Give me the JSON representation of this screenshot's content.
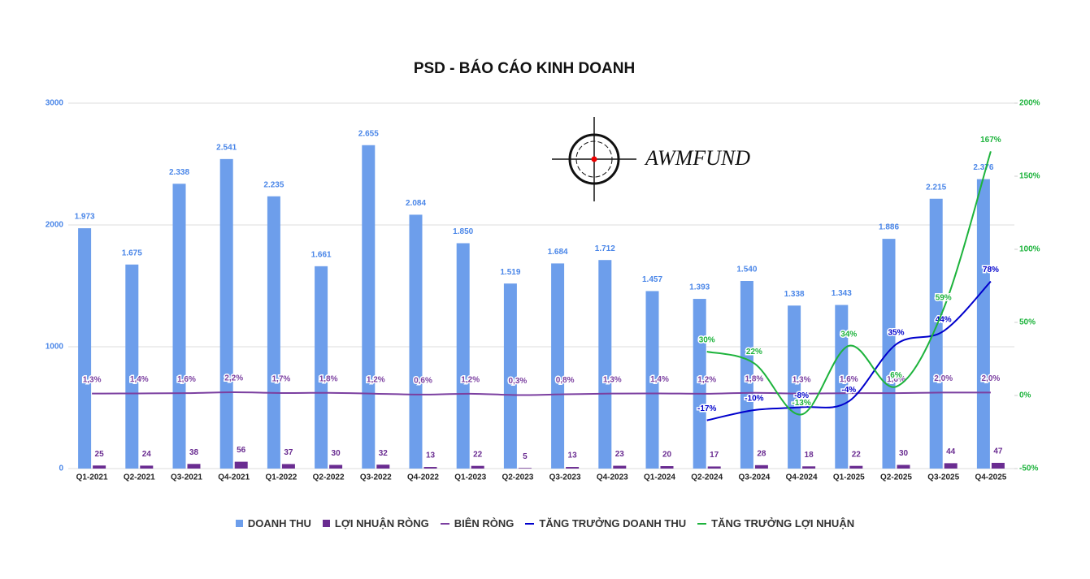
{
  "chart_data": {
    "type": "bar-line",
    "title": "PSD - BÁO CÁO KINH DOANH",
    "watermark": "AWMFUND",
    "categories": [
      "Q1-2021",
      "Q2-2021",
      "Q3-2021",
      "Q4-2021",
      "Q1-2022",
      "Q2-2022",
      "Q3-2022",
      "Q4-2022",
      "Q1-2023",
      "Q2-2023",
      "Q3-2023",
      "Q4-2023",
      "Q1-2024",
      "Q2-2024",
      "Q3-2024",
      "Q4-2024",
      "Q1-2025",
      "Q2-2025",
      "Q3-2025",
      "Q4-2025"
    ],
    "ylim": [
      0,
      3000
    ],
    "yticks": [
      0,
      1000,
      2000,
      3000
    ],
    "y2lim": [
      -50,
      200
    ],
    "y2ticks": [
      {
        "value": -50,
        "label": "-50%"
      },
      {
        "value": 0,
        "label": "0%"
      },
      {
        "value": 50,
        "label": "50%"
      },
      {
        "value": 100,
        "label": "100%"
      },
      {
        "value": 150,
        "label": "150%"
      },
      {
        "value": 200,
        "label": "200%"
      }
    ],
    "grid": true,
    "legend": "bottom",
    "series": [
      {
        "name": "DOANH THU",
        "kind": "bar",
        "color": "#6d9eeb",
        "values": [
          1973,
          1675,
          2338,
          2541,
          2235,
          1661,
          2655,
          2084,
          1850,
          1519,
          1684,
          1712,
          1457,
          1393,
          1540,
          1338,
          1343,
          1886,
          2215,
          2376
        ],
        "value_labels": [
          "1.973",
          "1.675",
          "2.338",
          "2.541",
          "2.235",
          "1.661",
          "2.655",
          "2.084",
          "1.850",
          "1.519",
          "1.684",
          "1.712",
          "1.457",
          "1.393",
          "1.540",
          "1.338",
          "1.343",
          "1.886",
          "2.215",
          "2.376"
        ]
      },
      {
        "name": "LỢI NHUẬN RÒNG",
        "kind": "bar",
        "color": "#6a2c91",
        "values": [
          25,
          24,
          38,
          56,
          37,
          30,
          32,
          13,
          22,
          5,
          13,
          23,
          20,
          17,
          28,
          18,
          22,
          30,
          44,
          47
        ]
      },
      {
        "name": "BIÊN RÒNG",
        "kind": "line",
        "axis": "y2",
        "color": "#7b3fa0",
        "values": [
          1.3,
          1.4,
          1.6,
          2.2,
          1.7,
          1.8,
          1.2,
          0.6,
          1.2,
          0.3,
          0.8,
          1.3,
          1.4,
          1.2,
          1.8,
          1.3,
          1.6,
          1.6,
          2.0,
          2.0
        ],
        "value_labels": [
          "1,3%",
          "1,4%",
          "1,6%",
          "2,2%",
          "1,7%",
          "1,8%",
          "1,2%",
          "0,6%",
          "1,2%",
          "0,3%",
          "0,8%",
          "1,3%",
          "1,4%",
          "1,2%",
          "1,8%",
          "1,3%",
          "1,6%",
          "1,6%",
          "2,0%",
          "2,0%"
        ]
      },
      {
        "name": "TĂNG TRƯỞNG DOANH THU",
        "kind": "line",
        "axis": "y2",
        "color": "#0000cc",
        "values": [
          null,
          null,
          null,
          null,
          null,
          null,
          null,
          null,
          null,
          null,
          null,
          null,
          null,
          -17,
          -10,
          -8,
          -4,
          35,
          44,
          78
        ],
        "value_labels": [
          null,
          null,
          null,
          null,
          null,
          null,
          null,
          null,
          null,
          null,
          null,
          null,
          null,
          "-17%",
          "-10%",
          "-8%",
          "-4%",
          "35%",
          "44%",
          "78%"
        ]
      },
      {
        "name": "TĂNG TRƯỞNG LỢI NHUẬN",
        "kind": "line",
        "axis": "y2",
        "color": "#1db33c",
        "values": [
          null,
          null,
          null,
          null,
          null,
          null,
          null,
          null,
          null,
          null,
          null,
          null,
          null,
          30,
          22,
          -13,
          34,
          6,
          59,
          167
        ],
        "value_labels": [
          null,
          null,
          null,
          null,
          null,
          null,
          null,
          null,
          null,
          null,
          null,
          null,
          null,
          "30%",
          "22%",
          "-13%",
          "34%",
          "6%",
          "59%",
          "167%"
        ]
      }
    ]
  }
}
